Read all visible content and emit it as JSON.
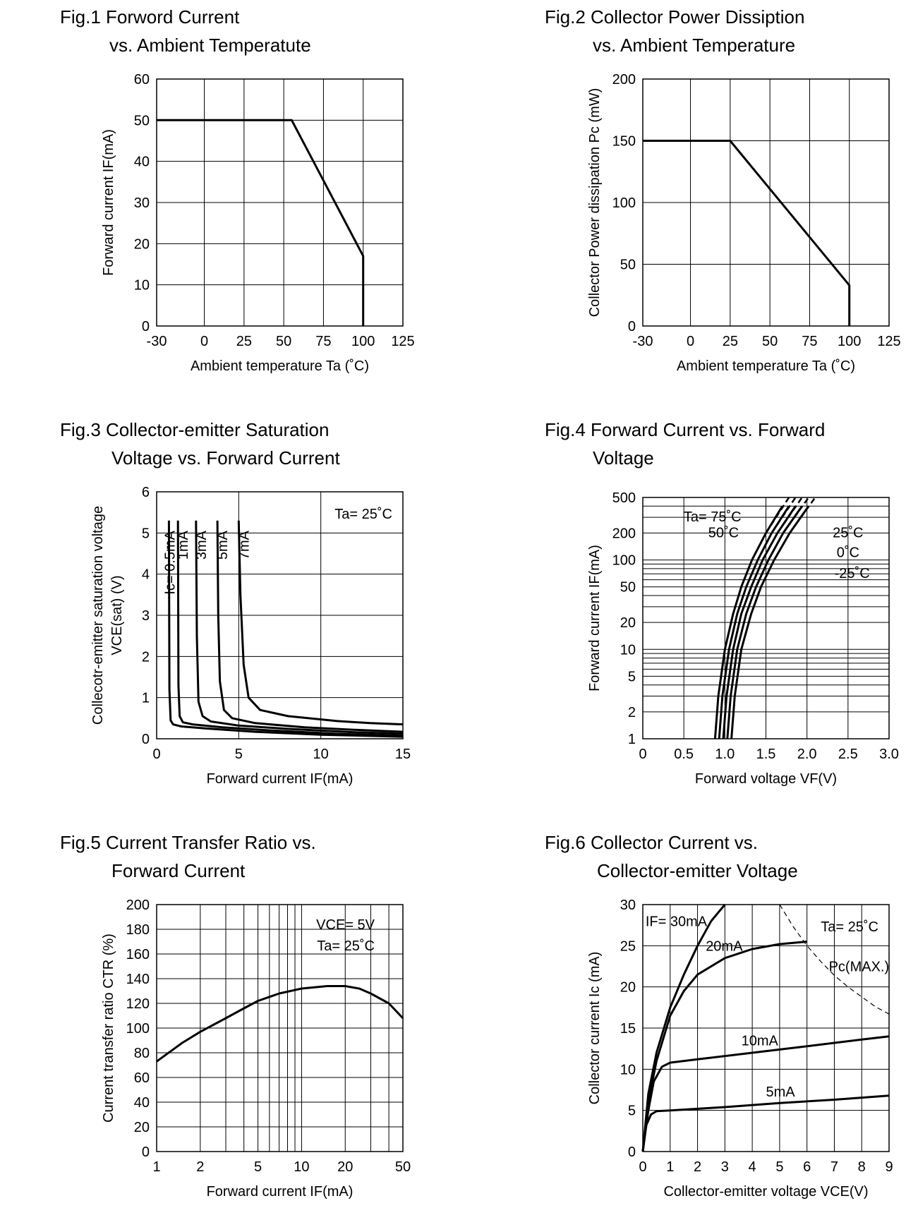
{
  "chart_data": [
    {
      "id": "fig1",
      "type": "line",
      "title_line1": "Fig.1 Forword Current",
      "title_line2": "vs. Ambient Temperatute",
      "xlabel": "Ambient temperature Ta (˚C)",
      "ylabel": "Forward current IF(mA)",
      "xlim": [
        -30,
        125
      ],
      "ylim": [
        0,
        60
      ],
      "xticks": [
        -30,
        0,
        25,
        50,
        75,
        100,
        125
      ],
      "xtick_labels": [
        "-30",
        "0",
        "25",
        "50",
        "75",
        "100",
        "125"
      ],
      "yticks": [
        0,
        10,
        20,
        30,
        40,
        50,
        60
      ],
      "ytick_labels": [
        "0",
        "10",
        "20",
        "30",
        "40",
        "50",
        "60"
      ],
      "grid": true,
      "series": [
        {
          "name": "IF",
          "x": [
            -30,
            55,
            100,
            100
          ],
          "y": [
            50,
            50,
            17,
            0
          ]
        }
      ]
    },
    {
      "id": "fig2",
      "type": "line",
      "title_line1": "Fig.2 Collector Power Dissiption",
      "title_line2": "vs. Ambient Temperature",
      "xlabel": "Ambient temperature Ta (˚C)",
      "ylabel": "Collector Power dissipation Pc (mW)",
      "xlim": [
        -30,
        125
      ],
      "ylim": [
        0,
        200
      ],
      "xticks": [
        -30,
        0,
        25,
        50,
        75,
        100,
        125
      ],
      "xtick_labels": [
        "-30",
        "0",
        "25",
        "50",
        "75",
        "100",
        "125"
      ],
      "yticks": [
        0,
        50,
        100,
        150,
        200
      ],
      "ytick_labels": [
        "0",
        "50",
        "100",
        "150",
        "200"
      ],
      "grid": true,
      "series": [
        {
          "name": "Pc",
          "x": [
            -30,
            25,
            100,
            100
          ],
          "y": [
            150,
            150,
            33,
            0
          ]
        }
      ]
    },
    {
      "id": "fig3",
      "type": "line",
      "title_line1": "Fig.3 Collector-emitter Saturation",
      "title_line2": "Voltage vs. Forward Current",
      "xlabel": "Forward current IF(mA)",
      "ylabel_line1": "Collecotr-emitter saturation voltage",
      "ylabel_line2": "VCE(sat) (V)",
      "xlim": [
        0,
        15
      ],
      "ylim": [
        0,
        6
      ],
      "xticks": [
        0,
        5,
        10,
        15
      ],
      "xtick_labels": [
        "0",
        "5",
        "10",
        "15"
      ],
      "yticks": [
        0,
        1,
        2,
        3,
        4,
        5,
        6
      ],
      "ytick_labels": [
        "0",
        "1",
        "2",
        "3",
        "4",
        "5",
        "6"
      ],
      "grid": true,
      "annotation": "Ta= 25˚C",
      "series": [
        {
          "name": "Ic= 0.5mA",
          "x": [
            0.75,
            0.78,
            0.85,
            1.0,
            1.5,
            3,
            6,
            10,
            15
          ],
          "y": [
            5.3,
            1.2,
            0.45,
            0.35,
            0.3,
            0.25,
            0.17,
            0.1,
            0.05
          ]
        },
        {
          "name": "1mA",
          "x": [
            1.3,
            1.33,
            1.4,
            1.6,
            2.2,
            4,
            7,
            11,
            15
          ],
          "y": [
            5.3,
            1.3,
            0.55,
            0.4,
            0.35,
            0.28,
            0.2,
            0.12,
            0.07
          ]
        },
        {
          "name": "3mA",
          "x": [
            2.4,
            2.45,
            2.55,
            2.8,
            3.3,
            5,
            8,
            12,
            15
          ],
          "y": [
            5.3,
            2.5,
            0.9,
            0.55,
            0.42,
            0.32,
            0.24,
            0.16,
            0.12
          ]
        },
        {
          "name": "5mA",
          "x": [
            3.7,
            3.75,
            3.85,
            4.1,
            4.6,
            6,
            9,
            12,
            15
          ],
          "y": [
            5.3,
            3.0,
            1.4,
            0.7,
            0.5,
            0.38,
            0.28,
            0.22,
            0.17
          ]
        },
        {
          "name": "7mA",
          "x": [
            5.0,
            5.1,
            5.3,
            5.6,
            6.3,
            8,
            11,
            13,
            15
          ],
          "y": [
            5.3,
            3.5,
            1.8,
            1.0,
            0.7,
            0.55,
            0.43,
            0.38,
            0.35
          ]
        }
      ]
    },
    {
      "id": "fig4",
      "type": "line",
      "yscale": "log",
      "title_line1": "Fig.4 Forward Current vs. Forward",
      "title_line2": "Voltage",
      "xlabel": "Forward voltage VF(V)",
      "ylabel": "Forward current IF(mA)",
      "xlim": [
        0,
        3.0
      ],
      "ylim": [
        1,
        500
      ],
      "xticks": [
        0,
        0.5,
        1.0,
        1.5,
        2.0,
        2.5,
        3.0
      ],
      "xtick_labels": [
        "0",
        "0.5",
        "1.0",
        "1.5",
        "2.0",
        "2.5",
        "3.0"
      ],
      "yticks": [
        1,
        2,
        5,
        10,
        20,
        50,
        100,
        200,
        500
      ],
      "ytick_labels": [
        "1",
        "2",
        "5",
        "10",
        "20",
        "50",
        "100",
        "200",
        "500"
      ],
      "grid": true,
      "labels": [
        "Ta= 75˚C",
        "50˚C",
        "25˚C",
        "0˚C",
        "-25˚C"
      ],
      "series": [
        {
          "name": "Ta= 75˚C",
          "x": [
            0.88,
            0.92,
            1.0,
            1.1,
            1.2,
            1.33,
            1.5,
            1.7
          ],
          "y": [
            1,
            3,
            10,
            25,
            50,
            100,
            200,
            400
          ]
        },
        {
          "name": "50˚C",
          "x": [
            0.93,
            0.97,
            1.05,
            1.15,
            1.26,
            1.4,
            1.57,
            1.78
          ],
          "y": [
            1,
            3,
            10,
            25,
            50,
            100,
            200,
            400
          ]
        },
        {
          "name": "25˚C",
          "x": [
            0.98,
            1.02,
            1.1,
            1.2,
            1.32,
            1.46,
            1.64,
            1.86
          ],
          "y": [
            1,
            3,
            10,
            25,
            50,
            100,
            200,
            400
          ]
        },
        {
          "name": "0˚C",
          "x": [
            1.03,
            1.07,
            1.15,
            1.26,
            1.38,
            1.53,
            1.71,
            1.94
          ],
          "y": [
            1,
            3,
            10,
            25,
            50,
            100,
            200,
            400
          ]
        },
        {
          "name": "-25˚C",
          "x": [
            1.08,
            1.12,
            1.2,
            1.32,
            1.44,
            1.6,
            1.79,
            2.02
          ],
          "y": [
            1,
            3,
            10,
            25,
            50,
            100,
            200,
            400
          ]
        }
      ]
    },
    {
      "id": "fig5",
      "type": "line",
      "xscale": "log",
      "title_line1": "Fig.5 Current Transfer Ratio vs.",
      "title_line2": "Forward Current",
      "xlabel": "Forward current IF(mA)",
      "ylabel": "Current transfer ratio CTR (%)",
      "xlim": [
        1,
        50
      ],
      "ylim": [
        0,
        200
      ],
      "xticks": [
        1,
        2,
        5,
        10,
        20,
        50
      ],
      "xtick_labels": [
        "1",
        "2",
        "5",
        "10",
        "20",
        "50"
      ],
      "yticks": [
        0,
        20,
        40,
        60,
        80,
        100,
        120,
        140,
        160,
        180,
        200
      ],
      "ytick_labels": [
        "0",
        "20",
        "40",
        "60",
        "80",
        "100",
        "120",
        "140",
        "160",
        "180",
        "200"
      ],
      "grid": true,
      "annotation_line1": "VCE= 5V",
      "annotation_line2": "Ta= 25˚C",
      "series": [
        {
          "name": "CTR",
          "x": [
            1,
            1.5,
            2,
            3,
            4,
            5,
            7,
            10,
            15,
            20,
            25,
            30,
            40,
            50
          ],
          "y": [
            73,
            88,
            97,
            108,
            116,
            122,
            128,
            132,
            134,
            134,
            132,
            128,
            120,
            108
          ]
        }
      ]
    },
    {
      "id": "fig6",
      "type": "line",
      "title_line1": "Fig.6 Collector Current vs.",
      "title_line2": "Collector-emitter Voltage",
      "xlabel": "Collector-emitter voltage VCE(V)",
      "ylabel": "Collector current Ic (mA)",
      "xlim": [
        0,
        9
      ],
      "ylim": [
        0,
        30
      ],
      "xticks": [
        0,
        1,
        2,
        3,
        4,
        5,
        6,
        7,
        8,
        9
      ],
      "xtick_labels": [
        "0",
        "1",
        "2",
        "3",
        "4",
        "5",
        "6",
        "7",
        "8",
        "9"
      ],
      "yticks": [
        0,
        5,
        10,
        15,
        20,
        25,
        30
      ],
      "ytick_labels": [
        "0",
        "5",
        "10",
        "15",
        "20",
        "25",
        "30"
      ],
      "grid": true,
      "annotation": "Ta= 25˚C",
      "pc_max_label": "Pc(MAX.)",
      "series": [
        {
          "name": "IF= 30mA",
          "x": [
            0,
            0.2,
            0.5,
            1.0,
            1.5,
            2.0,
            2.5,
            3.0
          ],
          "y": [
            0,
            7,
            12,
            17.5,
            21.5,
            25,
            28,
            30
          ]
        },
        {
          "name": "20mA",
          "x": [
            0,
            0.2,
            0.5,
            1.0,
            1.5,
            2.0,
            3.0,
            4.0,
            5.0,
            6.0
          ],
          "y": [
            0,
            6,
            11,
            16.5,
            19.5,
            21.5,
            23.5,
            24.6,
            25.2,
            25.5
          ]
        },
        {
          "name": "10mA",
          "x": [
            0,
            0.2,
            0.4,
            0.7,
            1.0,
            2,
            4,
            6,
            8,
            9
          ],
          "y": [
            0,
            5,
            8.5,
            10.3,
            10.8,
            11.2,
            12,
            12.8,
            13.6,
            14
          ]
        },
        {
          "name": "5mA",
          "x": [
            0,
            0.1,
            0.3,
            0.5,
            1.0,
            3,
            5,
            7,
            9
          ],
          "y": [
            0,
            3,
            4.5,
            4.9,
            5.0,
            5.4,
            5.9,
            6.3,
            6.8
          ]
        }
      ],
      "pc_max_curve": {
        "x": [
          5,
          5.5,
          6,
          6.5,
          7,
          7.5,
          8,
          8.5,
          9
        ],
        "y": [
          30,
          27.3,
          25,
          23.1,
          21.4,
          20,
          18.8,
          17.6,
          16.7
        ]
      }
    }
  ]
}
